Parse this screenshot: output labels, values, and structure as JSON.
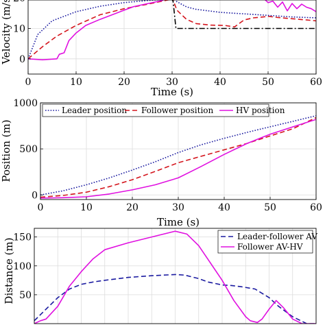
{
  "chart_data": [
    {
      "type": "line",
      "xlabel": "Time (s)",
      "ylabel": "Velocity (m/s)",
      "xlim": [
        0,
        60
      ],
      "ylim": [
        -5,
        25
      ],
      "xticks": [
        "0",
        "10",
        "20",
        "30",
        "40",
        "50",
        "60"
      ],
      "yticks": [
        "0",
        "10",
        "20"
      ],
      "grid": true,
      "series": [
        {
          "color": "#d4141c",
          "style": "dash",
          "x": [
            0,
            3,
            6,
            10,
            15,
            20,
            25,
            29.5,
            30,
            31,
            33,
            35,
            38,
            41,
            43,
            45,
            47,
            49,
            50,
            52,
            55,
            58,
            60
          ],
          "y": [
            0,
            4,
            7.5,
            11,
            14.5,
            16.5,
            18,
            19.5,
            20.2,
            16,
            13,
            11.6,
            11.1,
            11,
            10.5,
            12.8,
            13.5,
            13.8,
            14,
            13.6,
            13.2,
            12.8,
            12.5
          ]
        },
        {
          "color": "#1a1aa0",
          "style": "dot",
          "x": [
            0,
            2,
            5,
            10,
            15,
            20,
            25,
            29,
            30,
            31,
            33,
            35,
            38,
            40,
            45,
            50,
            55,
            60
          ],
          "y": [
            0,
            8,
            12.5,
            15.5,
            17.3,
            18.5,
            19.2,
            19.6,
            20.2,
            18.8,
            17.1,
            16.3,
            15.7,
            15.3,
            14.8,
            14.3,
            13.8,
            13.5
          ]
        },
        {
          "color": "#000000",
          "style": "dashdot",
          "x": [
            0,
            29.8,
            30.2,
            30.8,
            60
          ],
          "y": [
            20,
            20,
            19,
            10,
            10
          ]
        },
        {
          "color": "#e010e0",
          "style": "solid",
          "x": [
            0,
            3,
            6,
            6.5,
            7.5,
            8.5,
            10,
            12,
            15,
            18,
            20,
            22,
            25,
            28,
            29.5,
            30,
            31,
            32,
            33,
            33.5,
            36,
            40,
            45,
            46.5,
            47.5,
            49,
            50,
            51,
            52,
            53,
            54,
            55,
            56,
            57,
            58,
            59,
            60
          ],
          "y": [
            0,
            -0.3,
            0,
            1.5,
            2,
            6,
            8.5,
            11,
            13,
            14.8,
            16,
            17.2,
            18.2,
            19.2,
            21,
            21.5,
            23.5,
            24.5,
            27,
            26,
            27,
            27,
            27,
            23.5,
            21,
            20,
            18.5,
            19,
            17,
            18.7,
            15.8,
            18.2,
            16.5,
            18,
            17,
            16.5,
            15.5
          ]
        }
      ]
    },
    {
      "type": "line",
      "xlabel": "Time (s)",
      "ylabel": "Position (m)",
      "xlim": [
        0,
        60
      ],
      "ylim": [
        -50,
        1000
      ],
      "xticks": [
        "0",
        "10",
        "20",
        "30",
        "40",
        "50",
        "60"
      ],
      "yticks": [
        "0",
        "500",
        "1000"
      ],
      "grid": true,
      "series": [
        {
          "name": "Leader position",
          "color": "#1a1aa0",
          "style": "dot",
          "x": [
            0,
            5,
            10,
            15,
            20,
            25,
            30,
            35,
            40,
            45,
            50,
            55,
            60
          ],
          "y": [
            0,
            45,
            110,
            185,
            270,
            360,
            460,
            545,
            615,
            680,
            740,
            800,
            860
          ]
        },
        {
          "name": "Follower position",
          "color": "#d4141c",
          "style": "dash",
          "x": [
            0,
            5,
            10,
            15,
            20,
            25,
            30,
            35,
            40,
            45,
            50,
            55,
            60
          ],
          "y": [
            -25,
            -5,
            30,
            90,
            165,
            255,
            350,
            420,
            490,
            560,
            640,
            720,
            840
          ]
        },
        {
          "name": "HV position",
          "color": "#e010e0",
          "style": "solid",
          "x": [
            0,
            5,
            10,
            15,
            20,
            25,
            30,
            35,
            40,
            45,
            50,
            55,
            60
          ],
          "y": [
            -35,
            -30,
            -20,
            10,
            55,
            110,
            185,
            310,
            440,
            560,
            660,
            740,
            820
          ]
        }
      ]
    },
    {
      "type": "line",
      "xlabel": "",
      "ylabel": "Distance (m)",
      "xlim": [
        0,
        60
      ],
      "ylim": [
        0,
        165
      ],
      "xticks": [],
      "yticks": [
        "50",
        "100",
        "150"
      ],
      "grid": true,
      "series": [
        {
          "name": "Leader-follower AV",
          "color": "#1a1aa0",
          "style": "dash",
          "x": [
            0,
            2.5,
            5,
            7.5,
            10,
            12.5,
            15,
            20,
            25,
            30,
            32,
            35,
            37,
            40,
            42,
            44,
            47,
            50,
            52,
            55,
            58,
            60
          ],
          "y": [
            5,
            25,
            45,
            60,
            68,
            72,
            75,
            80,
            83,
            85,
            84,
            78,
            72,
            67,
            66,
            64,
            60,
            45,
            30,
            12,
            0,
            0
          ]
        },
        {
          "name": "Follower AV-HV",
          "color": "#e010e0",
          "style": "solid",
          "x": [
            0,
            1.3,
            2.5,
            5,
            7.5,
            10,
            12.5,
            15,
            20,
            25,
            30,
            32.5,
            35,
            37.5,
            40,
            42.5,
            45,
            46,
            47.5,
            48.5,
            50,
            51.5,
            53,
            55,
            57,
            60
          ],
          "y": [
            0,
            5,
            8,
            30,
            65,
            90,
            112,
            128,
            140,
            150,
            160,
            155,
            135,
            105,
            75,
            40,
            12,
            5,
            2,
            8,
            25,
            40,
            28,
            8,
            0,
            0
          ]
        }
      ]
    }
  ]
}
